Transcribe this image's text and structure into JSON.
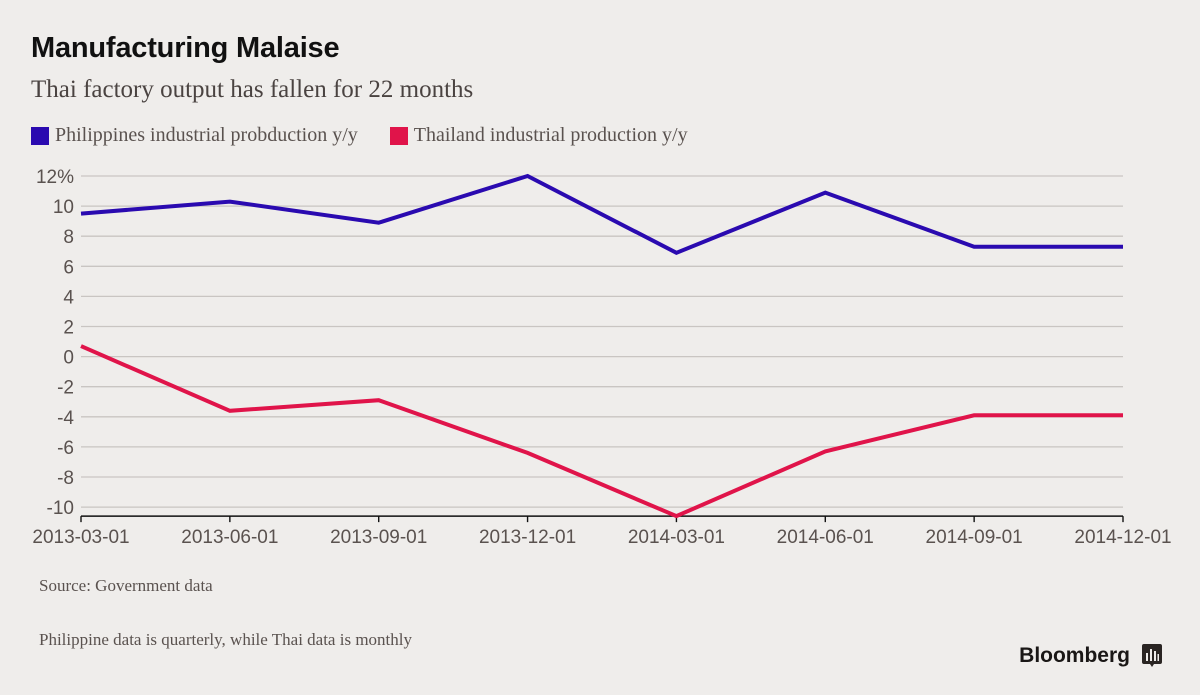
{
  "header": {
    "title": "Manufacturing Malaise",
    "subtitle": "Thai factory output has fallen for 22 months"
  },
  "footer": {
    "source": "Source: Government data",
    "note": "Philippine data is quarterly, while Thai data is monthly",
    "brand": "Bloomberg",
    "brand_icon": "bloomberg-terminal-icon"
  },
  "chart_data": {
    "type": "line",
    "title": "Manufacturing Malaise",
    "subtitle": "Thai factory output has fallen for 22 months",
    "xlabel": "",
    "ylabel": "",
    "x": [
      "2013-03-01",
      "2013-06-01",
      "2013-09-01",
      "2013-12-01",
      "2014-03-01",
      "2014-06-01",
      "2014-09-01",
      "2014-12-01"
    ],
    "y_ticks": [
      12,
      10,
      8,
      6,
      4,
      2,
      0,
      -2,
      -4,
      -6,
      -8,
      -10
    ],
    "y_tick_labels": [
      "12%",
      "10",
      "8",
      "6",
      "4",
      "2",
      "0",
      "-2",
      "-4",
      "-6",
      "-8",
      "-10"
    ],
    "ylim": [
      -10.6,
      12
    ],
    "grid": true,
    "legend_position": "top-left",
    "series": [
      {
        "name": "Philippines industrial probduction y/y",
        "color": "#2a0ab0",
        "values": [
          9.5,
          10.3,
          8.9,
          12.0,
          6.9,
          10.9,
          7.3,
          7.3
        ]
      },
      {
        "name": "Thailand industrial production y/y",
        "color": "#e0144a",
        "values": [
          0.7,
          -3.6,
          -2.9,
          -6.4,
          -10.6,
          -6.3,
          -3.9,
          -3.9
        ]
      }
    ]
  }
}
